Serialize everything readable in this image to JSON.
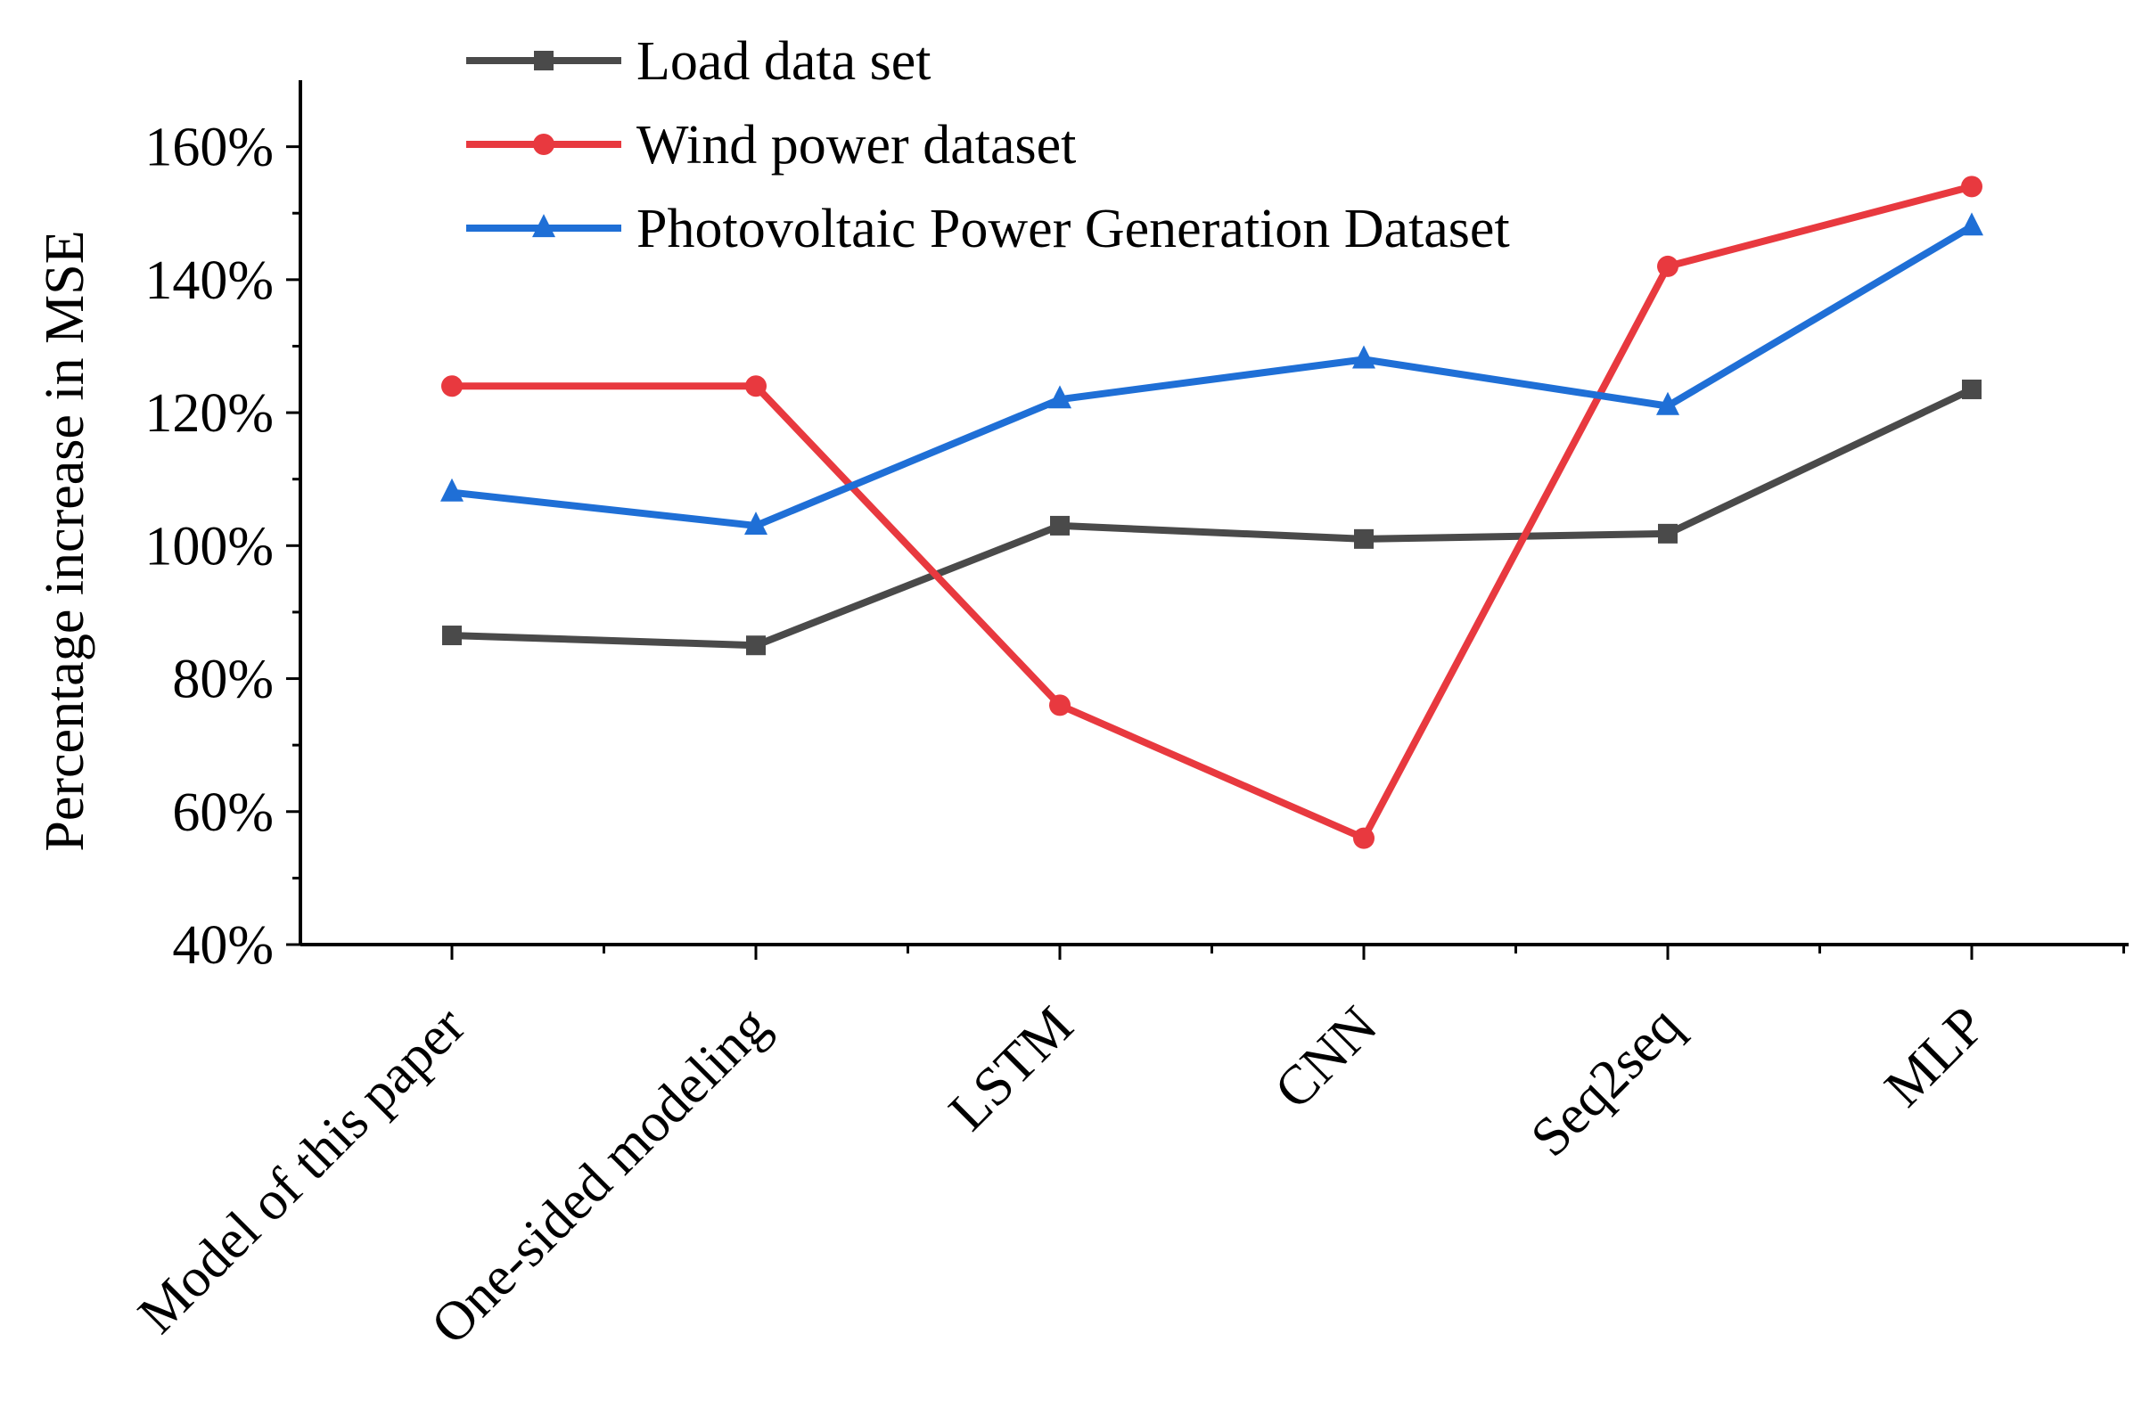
{
  "chart_data": {
    "type": "line",
    "categories": [
      "Model of this paper",
      "One-sided modeling",
      "LSTM",
      "CNN",
      "Seq2seq",
      "MLP"
    ],
    "series": [
      {
        "name": "Load data set",
        "color": "#4a4a4a",
        "marker": "square",
        "values": [
          0.865,
          0.85,
          1.03,
          1.01,
          1.018,
          1.235
        ]
      },
      {
        "name": "Wind power dataset",
        "color": "#e8393f",
        "marker": "circle",
        "values": [
          1.24,
          1.24,
          0.76,
          0.56,
          1.42,
          1.54
        ]
      },
      {
        "name": "Photovoltaic Power Generation Dataset",
        "color": "#1f6fd6",
        "marker": "triangle",
        "values": [
          1.08,
          1.03,
          1.22,
          1.28,
          1.21,
          1.48
        ]
      }
    ],
    "ylabel": "Percentage increase in MSE",
    "ylim": [
      0.4,
      1.7
    ],
    "yticks": [
      0.4,
      0.6,
      0.8,
      1.0,
      1.2,
      1.4,
      1.6
    ],
    "ytick_labels": [
      "40%",
      "60%",
      "80%",
      "100%",
      "120%",
      "140%",
      "160%"
    ],
    "grid": false,
    "legend_position": "top-left"
  }
}
